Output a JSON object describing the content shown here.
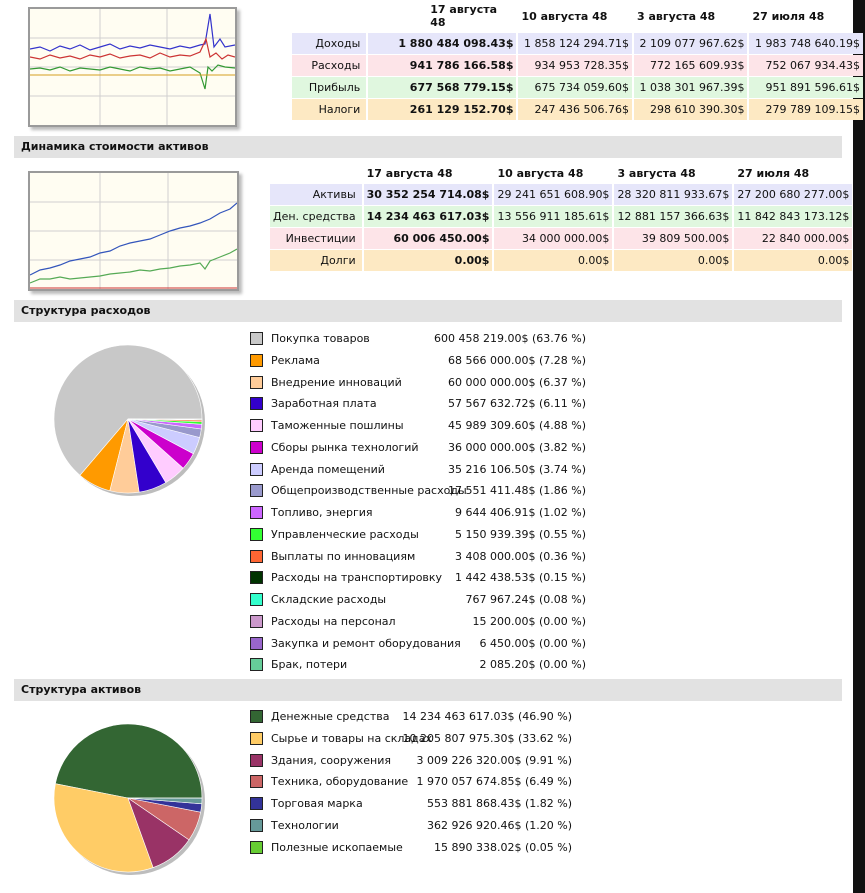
{
  "income_table": {
    "headers": [
      "17 августа 48",
      "10 августа 48",
      "3 августа 48",
      "27 июля 48"
    ],
    "rows": [
      {
        "label": "Доходы",
        "values": [
          "1 880 484 098.43$",
          "1 858 124 294.71$",
          "2 109 077 967.62$",
          "1 983 748 640.19$"
        ]
      },
      {
        "label": "Расходы",
        "values": [
          "941 786 166.58$",
          "934 953 728.35$",
          "772 165 609.93$",
          "752 067 934.43$"
        ]
      },
      {
        "label": "Прибыль",
        "values": [
          "677 568 779.15$",
          "675 734 059.60$",
          "1 038 301 967.39$",
          "951 891 596.61$"
        ]
      },
      {
        "label": "Налоги",
        "values": [
          "261 129 152.70$",
          "247 436 506.76$",
          "298 610 390.30$",
          "279 789 109.15$"
        ]
      }
    ]
  },
  "assets_dynamics": {
    "title": "Динамика стоимости активов",
    "headers": [
      "17 августа 48",
      "10 августа 48",
      "3 августа 48",
      "27 июля 48"
    ],
    "rows": [
      {
        "label": "Активы",
        "values": [
          "30 352 254 714.08$",
          "29 241 651 608.90$",
          "28 320 811 933.67$",
          "27 200 680 277.00$"
        ]
      },
      {
        "label": "Ден. средства",
        "values": [
          "14 234 463 617.03$",
          "13 556 911 185.61$",
          "12 881 157 366.63$",
          "11 842 843 173.12$"
        ]
      },
      {
        "label": "Инвестиции",
        "values": [
          "60 006 450.00$",
          "34 000 000.00$",
          "39 809 500.00$",
          "22 840 000.00$"
        ]
      },
      {
        "label": "Долги",
        "values": [
          "0.00$",
          "0.00$",
          "0.00$",
          "0.00$"
        ]
      }
    ]
  },
  "expenses_structure": {
    "title": "Структура расходов",
    "items": [
      {
        "label": "Покупка товаров",
        "value": "600 458 219.00$ (63.76 %)",
        "color": "#c8c8c8",
        "share": 63.76
      },
      {
        "label": "Реклама",
        "value": "68 566 000.00$ (7.28 %)",
        "color": "#ff9a00",
        "share": 7.28
      },
      {
        "label": "Внедрение инноваций",
        "value": "60 000 000.00$ (6.37 %)",
        "color": "#ffcc99",
        "share": 6.37
      },
      {
        "label": "Заработная плата",
        "value": "57 567 632.72$ (6.11 %)",
        "color": "#3300cc",
        "share": 6.11
      },
      {
        "label": "Таможенные пошлины",
        "value": "45 989 309.60$ (4.88 %)",
        "color": "#ffccff",
        "share": 4.88
      },
      {
        "label": "Сборы рынка технологий",
        "value": "36 000 000.00$ (3.82 %)",
        "color": "#cc00cc",
        "share": 3.82
      },
      {
        "label": "Аренда помещений",
        "value": "35 216 106.50$ (3.74 %)",
        "color": "#ccccff",
        "share": 3.74
      },
      {
        "label": "Общепроизводственные расходы",
        "value": "17 551 411.48$ (1.86 %)",
        "color": "#9999cc",
        "share": 1.86
      },
      {
        "label": "Топливо, энергия",
        "value": "9 644 406.91$ (1.02 %)",
        "color": "#cc66ff",
        "share": 1.02
      },
      {
        "label": "Управленческие расходы",
        "value": "5 150 939.39$ (0.55 %)",
        "color": "#33ff33",
        "share": 0.55
      },
      {
        "label": "Выплаты по инновациям",
        "value": "3 408 000.00$ (0.36 %)",
        "color": "#ff6633",
        "share": 0.36
      },
      {
        "label": "Расходы на транспортировку",
        "value": "1 442 438.53$ (0.15 %)",
        "color": "#003300",
        "share": 0.15
      },
      {
        "label": "Складские расходы",
        "value": "767 967.24$ (0.08 %)",
        "color": "#33ffcc",
        "share": 0.08
      },
      {
        "label": "Расходы на персонал",
        "value": "15 200.00$ (0.00 %)",
        "color": "#cc99cc",
        "share": 0.0
      },
      {
        "label": "Закупка и ремонт оборудования",
        "value": "6 450.00$ (0.00 %)",
        "color": "#9966cc",
        "share": 0.0
      },
      {
        "label": "Брак, потери",
        "value": "2 085.20$ (0.00 %)",
        "color": "#66cc99",
        "share": 0.0
      }
    ]
  },
  "assets_structure": {
    "title": "Структура активов",
    "items": [
      {
        "label": "Денежные средства",
        "value": "14 234 463 617.03$ (46.90 %)",
        "color": "#336633",
        "share": 46.9
      },
      {
        "label": "Сырье и товары на складах",
        "value": "10 205 807 975.30$ (33.62 %)",
        "color": "#ffcc66",
        "share": 33.62
      },
      {
        "label": "Здания, сооружения",
        "value": "3 009 226 320.00$ (9.91 %)",
        "color": "#993366",
        "share": 9.91
      },
      {
        "label": "Техника, оборудование",
        "value": "1 970 057 674.85$ (6.49 %)",
        "color": "#cc6666",
        "share": 6.49
      },
      {
        "label": "Торговая марка",
        "value": "553 881 868.43$ (1.82 %)",
        "color": "#333399",
        "share": 1.82
      },
      {
        "label": "Технологии",
        "value": "362 926 920.46$ (1.20 %)",
        "color": "#669999",
        "share": 1.2
      },
      {
        "label": "Полезные ископаемые",
        "value": "15 890 338.02$ (0.05 %)",
        "color": "#66cc33",
        "share": 0.05
      }
    ]
  }
}
